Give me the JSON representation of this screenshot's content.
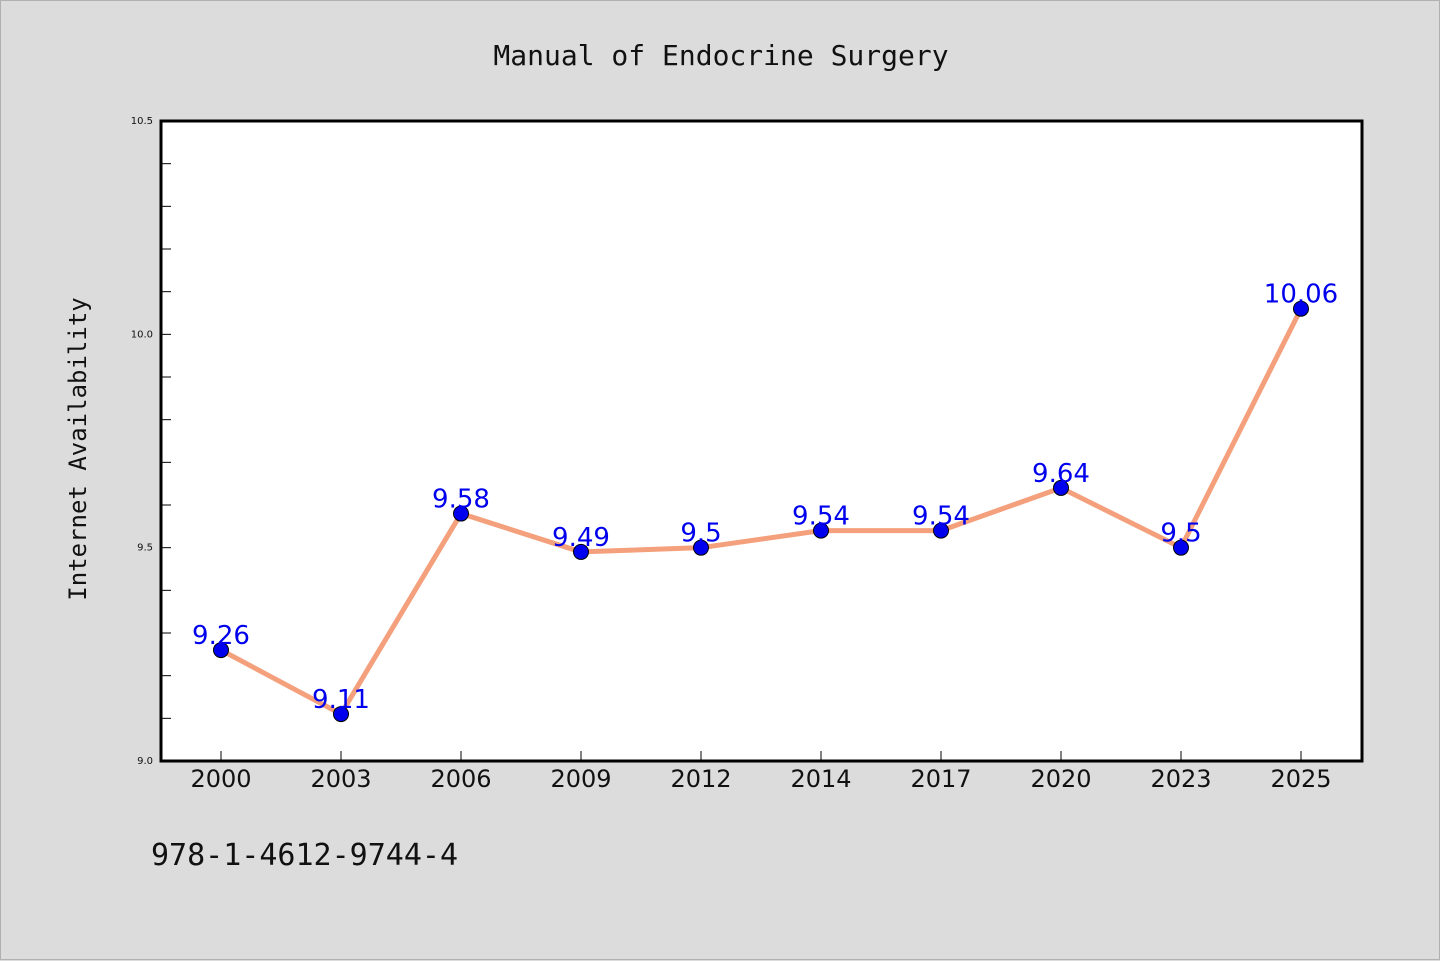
{
  "chart_data": {
    "type": "line",
    "title": "Manual of Endocrine Surgery",
    "xlabel": "",
    "ylabel": "Internet Availability",
    "categories": [
      "2000",
      "2003",
      "2006",
      "2009",
      "2012",
      "2014",
      "2017",
      "2020",
      "2023",
      "2025"
    ],
    "series": [
      {
        "values": [
          9.26,
          9.11,
          9.58,
          9.49,
          9.5,
          9.54,
          9.54,
          9.64,
          9.5,
          10.06
        ]
      }
    ],
    "data_labels": [
      "9.26",
      "9.11",
      "9.58",
      "9.49",
      "9.5",
      "9.54",
      "9.54",
      "9.64",
      "9.5",
      "10.06"
    ],
    "ylim": [
      9.0,
      10.5
    ],
    "yticks": [
      "9.0",
      "9.5",
      "10.0",
      "10.5"
    ],
    "grid": false,
    "line_color": "#f4a07c",
    "marker_color": "#0000ee",
    "label_color": "#0000ee"
  },
  "footer": {
    "isbn": "978-1-4612-9744-4"
  }
}
